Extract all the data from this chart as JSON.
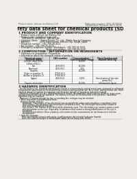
{
  "bg_color": "#f0ede8",
  "text_color": "#222222",
  "header_left": "Product name: Lithium Ion Battery Cell",
  "header_right_line1": "Publication number: SDS-LIB-0001S",
  "header_right_line2": "Established / Revision: Dec.1.2019",
  "title": "Safety data sheet for chemical products (SDS)",
  "s1_title": "1 PRODUCT AND COMPANY IDENTIFICATION",
  "s1_items": [
    "• Product name: Lithium Ion Battery Cell",
    "• Product code: Cylindrical-type cell",
    "    (IVR18650J, IVR18650L, IVR18650A)",
    "• Company name:    Sanyo Electric Co., Ltd., Mobile Energy Company",
    "• Address:              2001, Kamionuma, Sumoto City, Hyogo, Japan",
    "• Telephone number:  +81-799-26-4111",
    "• Fax number:  +81-799-26-4129",
    "• Emergency telephone number (Weekdays): +81-799-26-3962",
    "                                       (Night and holiday): +81-799-26-3129"
  ],
  "s2_title": "2 COMPOSITION / INFORMATION ON INGREDIENTS",
  "s2_line1": "• Substance or preparation: Preparation",
  "s2_line2": "• Information about the chemical nature of product:",
  "tbl_h1": "Chemical name /",
  "tbl_h1b": "General name",
  "tbl_h2": "CAS number",
  "tbl_h3": "Concentration /",
  "tbl_h3b": "Concentration range",
  "tbl_h4": "Classification and",
  "tbl_h4b": "hazard labeling",
  "tbl_rows": [
    [
      "Lithium cobalt oxide",
      "",
      "30-60%",
      ""
    ],
    [
      "(LiMnCo)(PbO₄)",
      "",
      "",
      ""
    ],
    [
      "Iron",
      "7439-89-6",
      "10-20%",
      ""
    ],
    [
      "Aluminum",
      "7429-90-5",
      "2-5%",
      ""
    ],
    [
      "Graphite",
      "",
      "10-20%",
      ""
    ],
    [
      "(Flake or graphite-1)",
      "77769-41-5",
      "",
      ""
    ],
    [
      "(Al-film or graphite-2)",
      "77769-44-0",
      "",
      ""
    ],
    [
      "Copper",
      "7440-50-8",
      "5-10%",
      "Sensitization of the skin"
    ],
    [
      "",
      "",
      "",
      "group Ra.2"
    ],
    [
      "Organic electrolyte",
      "-",
      "10-20%",
      "Inflammable liquid"
    ]
  ],
  "s3_title": "3 HAZARDS IDENTIFICATION",
  "s3_lines": [
    "  For the battery cell, chemical materials are stored in a hermetically-sealed metal case, designed to withstand",
    "temperatures generated by electrochemical reactions during normal use. As a result, during normal use, there is no",
    "physical danger of ignition or aspiration and therefore danger of hazardous materials leakage.",
    "  However, if exposed to a fire, added mechanical shocks, decomposed, where electric shorts in many cases,",
    "the gas release vent can be operated. The battery cell case will be breached if the pressure, hazardous",
    "materials may be released.",
    "  Moreover, if heated strongly by the surrounding fire, acid gas may be emitted."
  ],
  "s3_bullet1": "• Most important hazard and effects:",
  "s3_human": "Human health effects:",
  "s3_human_lines": [
    "  Inhalation: The release of the electrolyte has an anesthetic action and stimulates a respiratory tract.",
    "  Skin contact: The release of the electrolyte stimulates a skin. The electrolyte skin contact causes a",
    "  sore and stimulation on the skin.",
    "  Eye contact: The release of the electrolyte stimulates eyes. The electrolyte eye contact causes a sore",
    "  and stimulation on the eye. Especially, a substance that causes a strong inflammation of the eye is",
    "  contained.",
    "  Environmental effects: Since a battery cell remains in the environment, do not throw out it into the",
    "  environment."
  ],
  "s3_bullet2": "• Specific hazards:",
  "s3_specific_lines": [
    "  If the electrolyte contacts with water, it will generate detrimental hydrogen fluoride.",
    "  Since the lead electrolyte is inflammable liquid, do not bring close to fire."
  ]
}
